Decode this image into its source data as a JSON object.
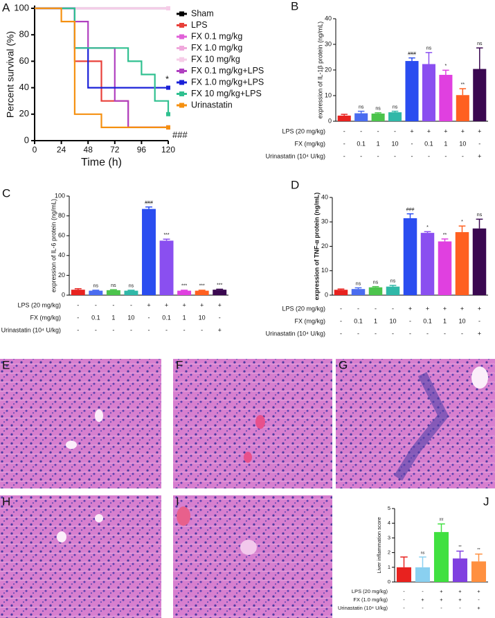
{
  "chart_data": [
    {
      "type": "line",
      "panel": "A",
      "x_label": "Time (h)",
      "y_label": "Percent survival (%)",
      "xlim": [
        0,
        120
      ],
      "xticks": [
        0,
        24,
        48,
        72,
        96,
        120
      ],
      "ylim": [
        0,
        100
      ],
      "yticks": [
        0,
        20,
        40,
        60,
        80,
        100
      ],
      "annotations": [
        "*",
        "###"
      ],
      "series": [
        {
          "name": "Sham",
          "color": "#000000",
          "x": [
            0,
            120
          ],
          "values": [
            100,
            100
          ]
        },
        {
          "name": "LPS",
          "color": "#e8403a",
          "x": [
            0,
            36,
            36,
            60,
            60,
            84,
            84,
            120
          ],
          "values": [
            100,
            100,
            60,
            60,
            30,
            30,
            10,
            10
          ]
        },
        {
          "name": "FX 0.1 mg/kg",
          "color": "#e060d8",
          "x": [
            0,
            120
          ],
          "values": [
            100,
            100
          ]
        },
        {
          "name": "FX 1.0 mg/kg",
          "color": "#f0a8dc",
          "x": [
            0,
            120
          ],
          "values": [
            100,
            100
          ]
        },
        {
          "name": "FX 10 mg/kg",
          "color": "#f6cce8",
          "x": [
            0,
            120
          ],
          "values": [
            100,
            100
          ]
        },
        {
          "name": "FX 0.1 mg/kg+LPS",
          "color": "#b040c0",
          "x": [
            0,
            36,
            36,
            48,
            48,
            72,
            72,
            84,
            84,
            120
          ],
          "values": [
            100,
            100,
            90,
            90,
            70,
            70,
            30,
            30,
            10,
            10
          ]
        },
        {
          "name": "FX 1.0 mg/kg+LPS",
          "color": "#1a20d8",
          "x": [
            0,
            36,
            36,
            48,
            48,
            120
          ],
          "values": [
            100,
            100,
            70,
            70,
            40,
            40
          ]
        },
        {
          "name": "FX 10 mg/kg+LPS",
          "color": "#30c090",
          "x": [
            0,
            36,
            36,
            84,
            84,
            96,
            96,
            108,
            108,
            120,
            120
          ],
          "values": [
            100,
            100,
            70,
            70,
            60,
            60,
            50,
            50,
            30,
            30,
            20
          ]
        },
        {
          "name": "Urinastatin",
          "color": "#f59010",
          "x": [
            0,
            24,
            24,
            36,
            36,
            60,
            60,
            120
          ],
          "values": [
            100,
            100,
            90,
            90,
            20,
            20,
            10,
            10
          ]
        }
      ]
    },
    {
      "type": "bar",
      "panel": "B",
      "y_label": "expression of IL-1β protein (ng/mL)",
      "ylim": [
        0,
        40
      ],
      "yticks": [
        0,
        10,
        20,
        30,
        40
      ],
      "values": [
        2.2,
        3.1,
        3.0,
        3.5,
        23.5,
        22.3,
        18.1,
        10.2,
        20.4
      ],
      "errors": [
        0.5,
        0.8,
        0.3,
        0.4,
        1.2,
        4.5,
        1.8,
        2.5,
        8.2
      ],
      "labels": [
        null,
        "ns",
        "ns",
        "ns",
        "###",
        "ns",
        "*",
        "**",
        "ns"
      ],
      "colors": [
        "#e8221f",
        "#4a6cf0",
        "#4cc44c",
        "#30b8a8",
        "#2a4df0",
        "#8a4ff0",
        "#e040e0",
        "#ff6020",
        "#3a0850"
      ],
      "conditions": [
        {
          "label": "LPS (20 mg/kg)",
          "values": [
            "-",
            "-",
            "-",
            "-",
            "+",
            "+",
            "+",
            "+",
            "+"
          ]
        },
        {
          "label": "FX (mg/kg)",
          "values": [
            "-",
            "0.1",
            "1",
            "10",
            "-",
            "0.1",
            "1",
            "10",
            "-"
          ]
        },
        {
          "label": "Urinastatin (10⁴ U/kg)",
          "values": [
            "-",
            "-",
            "-",
            "-",
            "-",
            "-",
            "-",
            "-",
            "+"
          ]
        }
      ]
    },
    {
      "type": "bar",
      "panel": "C",
      "y_label": "expression of IL-6 protein  (ng/mL)",
      "ylim": [
        0,
        100
      ],
      "yticks": [
        0,
        20,
        40,
        60,
        80,
        100
      ],
      "values": [
        5.5,
        4.5,
        5,
        4.5,
        87,
        55,
        4.5,
        4.5,
        5.5
      ],
      "errors": [
        1,
        0.5,
        0.5,
        0.5,
        2,
        1.5,
        0.5,
        0.5,
        0.5
      ],
      "labels": [
        null,
        "ns",
        "ns",
        "ns",
        "###",
        "***",
        "***",
        "***",
        "***"
      ],
      "colors": [
        "#e8221f",
        "#4a6cf0",
        "#4cc44c",
        "#30b8a8",
        "#2a4df0",
        "#8a4ff0",
        "#e040e0",
        "#ff6020",
        "#3a0850"
      ],
      "conditions": [
        {
          "label": "LPS (20 mg/kg)",
          "values": [
            "-",
            "-",
            "-",
            "-",
            "+",
            "+",
            "+",
            "+",
            "+"
          ]
        },
        {
          "label": "FX (mg/kg)",
          "values": [
            "-",
            "0.1",
            "1",
            "10",
            "-",
            "0.1",
            "1",
            "10",
            "-"
          ]
        },
        {
          "label": "Urinastatin (10⁴ U/kg)",
          "values": [
            "-",
            "-",
            "-",
            "-",
            "-",
            "-",
            "-",
            "-",
            "+"
          ]
        }
      ]
    },
    {
      "type": "bar",
      "panel": "D",
      "y_label": "expression of TNF-α protein (ng/mL)",
      "ylim": [
        0,
        40
      ],
      "yticks": [
        0,
        10,
        20,
        30,
        40
      ],
      "values": [
        2.2,
        2.5,
        3.2,
        3.5,
        31.5,
        25.5,
        22,
        25.8,
        27.3
      ],
      "errors": [
        0.3,
        0.5,
        0.3,
        0.5,
        1.8,
        0.5,
        1,
        2.5,
        3.8
      ],
      "labels": [
        null,
        "ns",
        "ns",
        "ns",
        "###",
        "*",
        "**",
        "*",
        "ns"
      ],
      "colors": [
        "#e8221f",
        "#4a6cf0",
        "#4cc44c",
        "#30b8a8",
        "#2a4df0",
        "#8a4ff0",
        "#e040e0",
        "#ff6020",
        "#3a0850"
      ],
      "conditions": [
        {
          "label": "LPS (20 mg/kg)",
          "values": [
            "-",
            "-",
            "-",
            "-",
            "+",
            "+",
            "+",
            "+",
            "+"
          ]
        },
        {
          "label": "FX (mg/kg)",
          "values": [
            "-",
            "0.1",
            "1",
            "10",
            "-",
            "0.1",
            "1",
            "10",
            "-"
          ]
        },
        {
          "label": "Urinastatin (10⁴ U/kg)",
          "values": [
            "-",
            "-",
            "-",
            "-",
            "-",
            "-",
            "-",
            "-",
            "+"
          ]
        }
      ]
    },
    {
      "type": "bar",
      "panel": "J",
      "y_label": "Liver inflammation score",
      "ylim": [
        0,
        5
      ],
      "yticks": [
        0,
        1,
        2,
        3,
        4,
        5
      ],
      "values": [
        1,
        1,
        3.4,
        1.6,
        1.4
      ],
      "errors": [
        0.7,
        0.7,
        0.55,
        0.5,
        0.5
      ],
      "labels": [
        null,
        "ns",
        "##",
        "**",
        "**"
      ],
      "colors": [
        "#e8221f",
        "#8ad0f0",
        "#40e040",
        "#8040e0",
        "#ff9040"
      ],
      "conditions": [
        {
          "label": "LPS (20 mg/kg)",
          "values": [
            "-",
            "-",
            "+",
            "+",
            "+"
          ]
        },
        {
          "label": "FX (1.0 mg/kg)",
          "values": [
            "-",
            "+",
            "+",
            "+",
            "-"
          ]
        },
        {
          "label": "Urinastatin (10⁴ U/kg)",
          "values": [
            "-",
            "-",
            "-",
            "-",
            "+"
          ]
        }
      ]
    }
  ],
  "image_panels": [
    "E",
    "F",
    "G",
    "H",
    "I"
  ]
}
